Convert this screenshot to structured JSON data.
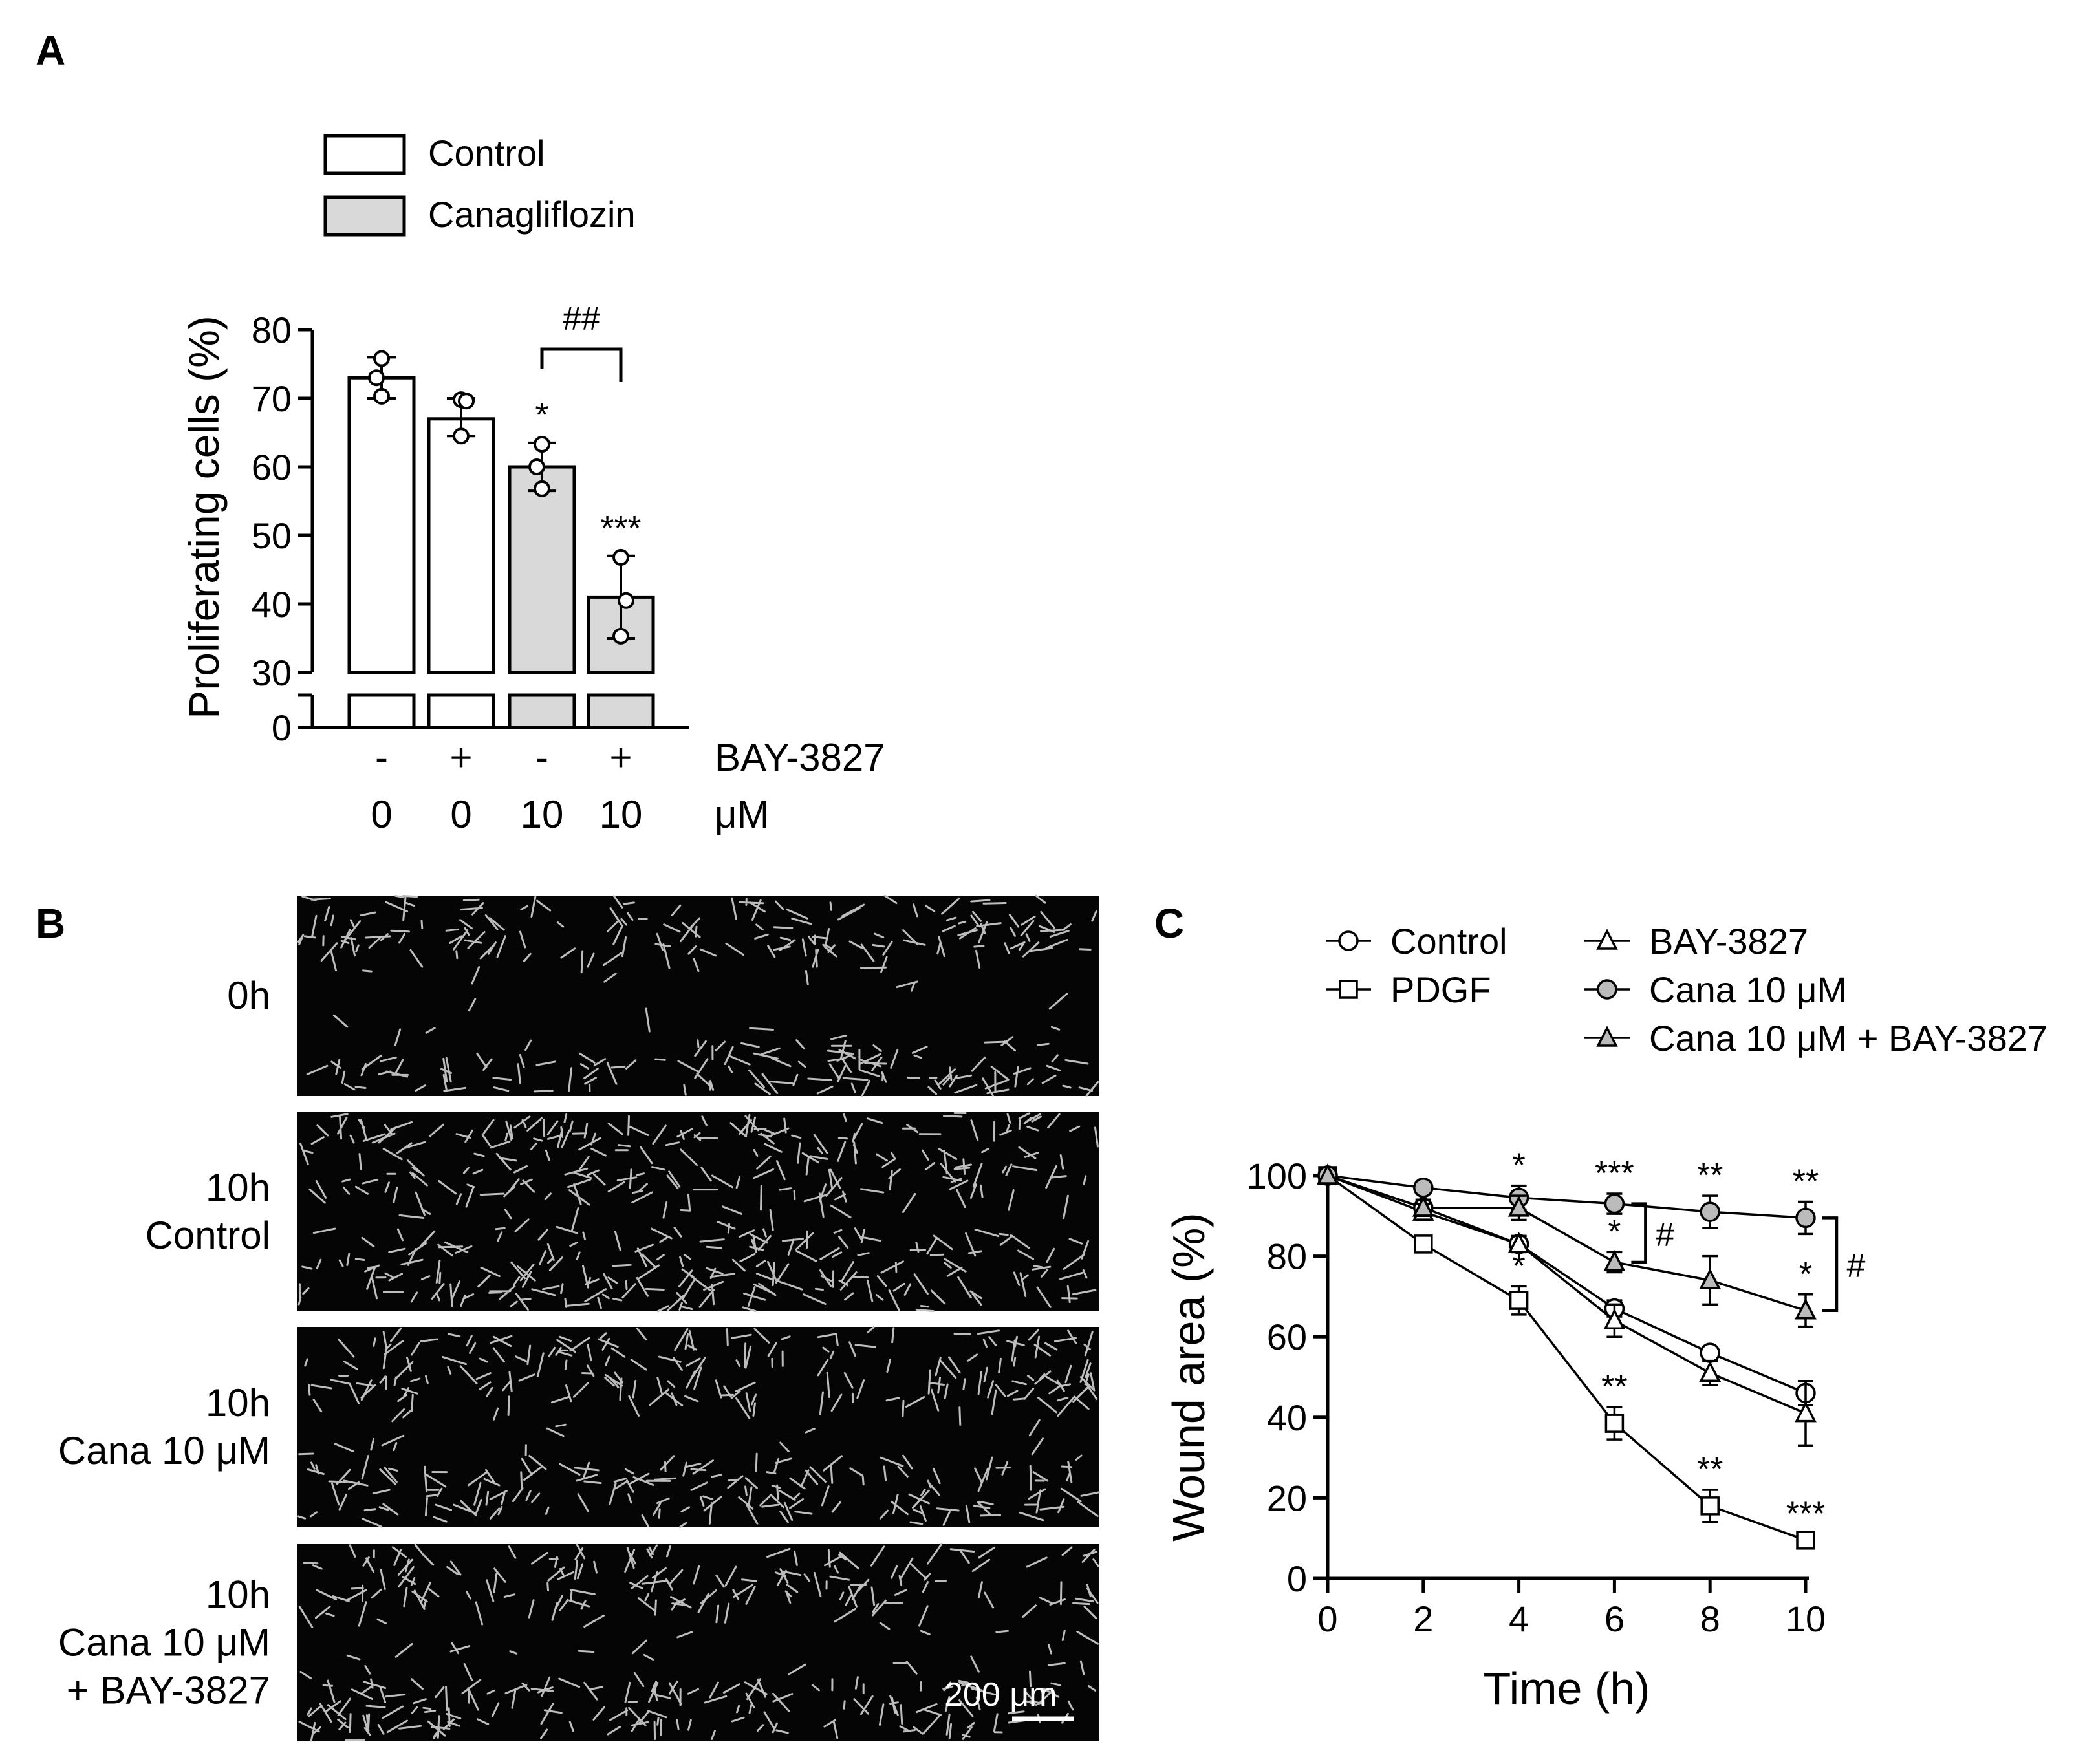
{
  "panels": {
    "a": "A",
    "b": "B",
    "c": "C"
  },
  "colors": {
    "control_fill": "#ffffff",
    "cana_fill": "#d9d9d9",
    "ink": "#000000",
    "micrograph_bg": "#050505",
    "cell_stroke": "#bdbdbd"
  },
  "panel_b": {
    "rows": [
      {
        "lines": [
          "0h"
        ]
      },
      {
        "lines": [
          "10h",
          "Control"
        ]
      },
      {
        "lines": [
          "10h",
          "Cana 10 μM"
        ]
      },
      {
        "lines": [
          "10h",
          "Cana 10 μM",
          "+ BAY-3827"
        ]
      }
    ],
    "scale_bar": "200  μm"
  },
  "chart_data": [
    {
      "type": "bar",
      "panel": "A",
      "legend": [
        {
          "name": "Control",
          "fill": "#ffffff"
        },
        {
          "name": "Canagliflozin",
          "fill": "#d9d9d9"
        }
      ],
      "ylabel": "Proliferating cells (%)",
      "yticks": [
        "0",
        "30",
        "40",
        "50",
        "60",
        "70",
        "80"
      ],
      "ylim": [
        30,
        80
      ],
      "axis_break": true,
      "bars": [
        {
          "value": 73,
          "sd_upper": 76,
          "sd_lower": 70,
          "points": [
            75.8,
            73.0,
            70.3
          ],
          "group": "Control",
          "star": ""
        },
        {
          "value": 67,
          "sd_upper": 70,
          "sd_lower": 64.5,
          "points": [
            69.8,
            69.6,
            64.5
          ],
          "group": "Control",
          "star": ""
        },
        {
          "value": 60,
          "sd_upper": 63.5,
          "sd_lower": 56.5,
          "points": [
            63.3,
            60.0,
            56.8
          ],
          "group": "Canagliflozin",
          "star": "*"
        },
        {
          "value": 41,
          "sd_upper": 47,
          "sd_lower": 35,
          "points": [
            46.8,
            40.5,
            35.3
          ],
          "group": "Canagliflozin",
          "star": "***"
        }
      ],
      "bracket": {
        "from": 2,
        "to": 3,
        "label": "##"
      },
      "x_rows": [
        {
          "cells": [
            "-",
            "+",
            "-",
            "+"
          ],
          "label": "BAY-3827"
        },
        {
          "cells": [
            "0",
            "0",
            "10",
            "10"
          ],
          "label": "μM"
        }
      ]
    },
    {
      "type": "line",
      "panel": "C",
      "xlabel": "Time (h)",
      "ylabel": "Wound area (%)",
      "x": [
        0,
        2,
        4,
        6,
        8,
        10
      ],
      "xlim": [
        0,
        10
      ],
      "ylim": [
        0,
        100
      ],
      "xticks": [
        "0",
        "2",
        "4",
        "6",
        "8",
        "10"
      ],
      "yticks": [
        "0",
        "20",
        "40",
        "60",
        "80",
        "100"
      ],
      "series": [
        {
          "name": "Control",
          "marker": "circle",
          "fill": "#ffffff",
          "values": [
            100,
            92,
            83,
            67,
            56,
            46
          ],
          "err": [
            0,
            2,
            2,
            2,
            1.5,
            3
          ],
          "stars": [
            "",
            "",
            "",
            "",
            "",
            ""
          ]
        },
        {
          "name": "PDGF",
          "marker": "square",
          "fill": "#ffffff",
          "values": [
            100,
            83,
            69,
            38.5,
            18,
            9.5
          ],
          "err": [
            0,
            1.5,
            3.5,
            4,
            4,
            1.5
          ],
          "stars": [
            "",
            "",
            "*",
            "**",
            "**",
            "***"
          ]
        },
        {
          "name": "BAY-3827",
          "marker": "triangle",
          "fill": "#ffffff",
          "values": [
            100,
            91,
            83,
            64,
            51,
            41
          ],
          "err": [
            0,
            2,
            2,
            4,
            3,
            8
          ],
          "stars": [
            "",
            "",
            "",
            "",
            "",
            ""
          ]
        },
        {
          "name": "Cana 10 μM",
          "marker": "circle",
          "fill": "#bbbbbb",
          "values": [
            100,
            97,
            94.5,
            93,
            91,
            89.5
          ],
          "err": [
            0,
            1.5,
            3,
            2.5,
            4,
            4
          ],
          "stars": [
            "",
            "",
            "*",
            "***",
            "**",
            "**"
          ]
        },
        {
          "name": "Cana 10 μM + BAY-3827",
          "marker": "triangle",
          "fill": "#bbbbbb",
          "values": [
            100,
            92,
            92,
            78.5,
            74,
            66.5
          ],
          "err": [
            0,
            2,
            3,
            2.5,
            6,
            4
          ],
          "stars": [
            "",
            "",
            "",
            "*",
            "",
            "*"
          ]
        }
      ],
      "brackets": [
        {
          "x": 6,
          "y_top": 93,
          "y_bottom": 78.5,
          "label": "#"
        },
        {
          "x": 10,
          "y_top": 89.5,
          "y_bottom": 66.5,
          "label": "#"
        }
      ]
    }
  ]
}
